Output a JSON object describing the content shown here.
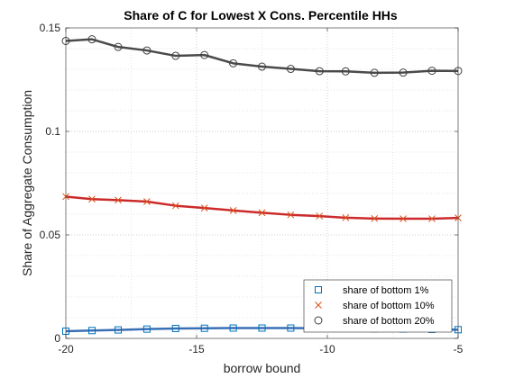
{
  "chart_data": {
    "type": "line",
    "title": "Share of C for Lowest X Cons. Percentile HHs",
    "xlabel": "borrow bound",
    "ylabel": "Share of Aggregate Consumption",
    "xlim": [
      -20,
      -5
    ],
    "ylim": [
      0,
      0.15
    ],
    "xticks": [
      -20,
      -15,
      -10,
      -5
    ],
    "xtick_labels": [
      "-20",
      "-15",
      "-10",
      "-5"
    ],
    "yticks": [
      0,
      0.05,
      0.1,
      0.15
    ],
    "ytick_labels": [
      "0",
      "0.05",
      "0.1",
      "0.15"
    ],
    "grid": true,
    "grid_style": "dotted",
    "legend_position": "bottom-right",
    "x": [
      -20,
      -19,
      -18,
      -16.9,
      -15.8,
      -14.7,
      -13.6,
      -12.5,
      -11.4,
      -10.3,
      -9.3,
      -8.2,
      -7.1,
      -6,
      -5
    ],
    "series": [
      {
        "name": "share of bottom 1%",
        "marker": "square",
        "color": "#0072BD",
        "line_color": "#3a6fb5",
        "values": [
          0.0035,
          0.0038,
          0.0041,
          0.0045,
          0.0048,
          0.0049,
          0.005,
          0.005,
          0.005,
          0.0049,
          0.0048,
          0.0047,
          0.0046,
          0.0044,
          0.0042
        ]
      },
      {
        "name": "share of bottom 10%",
        "marker": "x",
        "color": "#D95319",
        "line_color": "#cc2a2a",
        "values": [
          0.0685,
          0.0673,
          0.0668,
          0.0661,
          0.0641,
          0.063,
          0.0618,
          0.0607,
          0.0597,
          0.0591,
          0.0583,
          0.0579,
          0.0578,
          0.0578,
          0.0582
        ]
      },
      {
        "name": "share of bottom 20%",
        "marker": "circle",
        "color": "#404040",
        "line_color": "#4a4a4a",
        "values": [
          0.1437,
          0.1445,
          0.1408,
          0.1391,
          0.1365,
          0.1369,
          0.1329,
          0.1313,
          0.1302,
          0.1291,
          0.129,
          0.1283,
          0.1284,
          0.1293,
          0.1292
        ]
      }
    ]
  }
}
